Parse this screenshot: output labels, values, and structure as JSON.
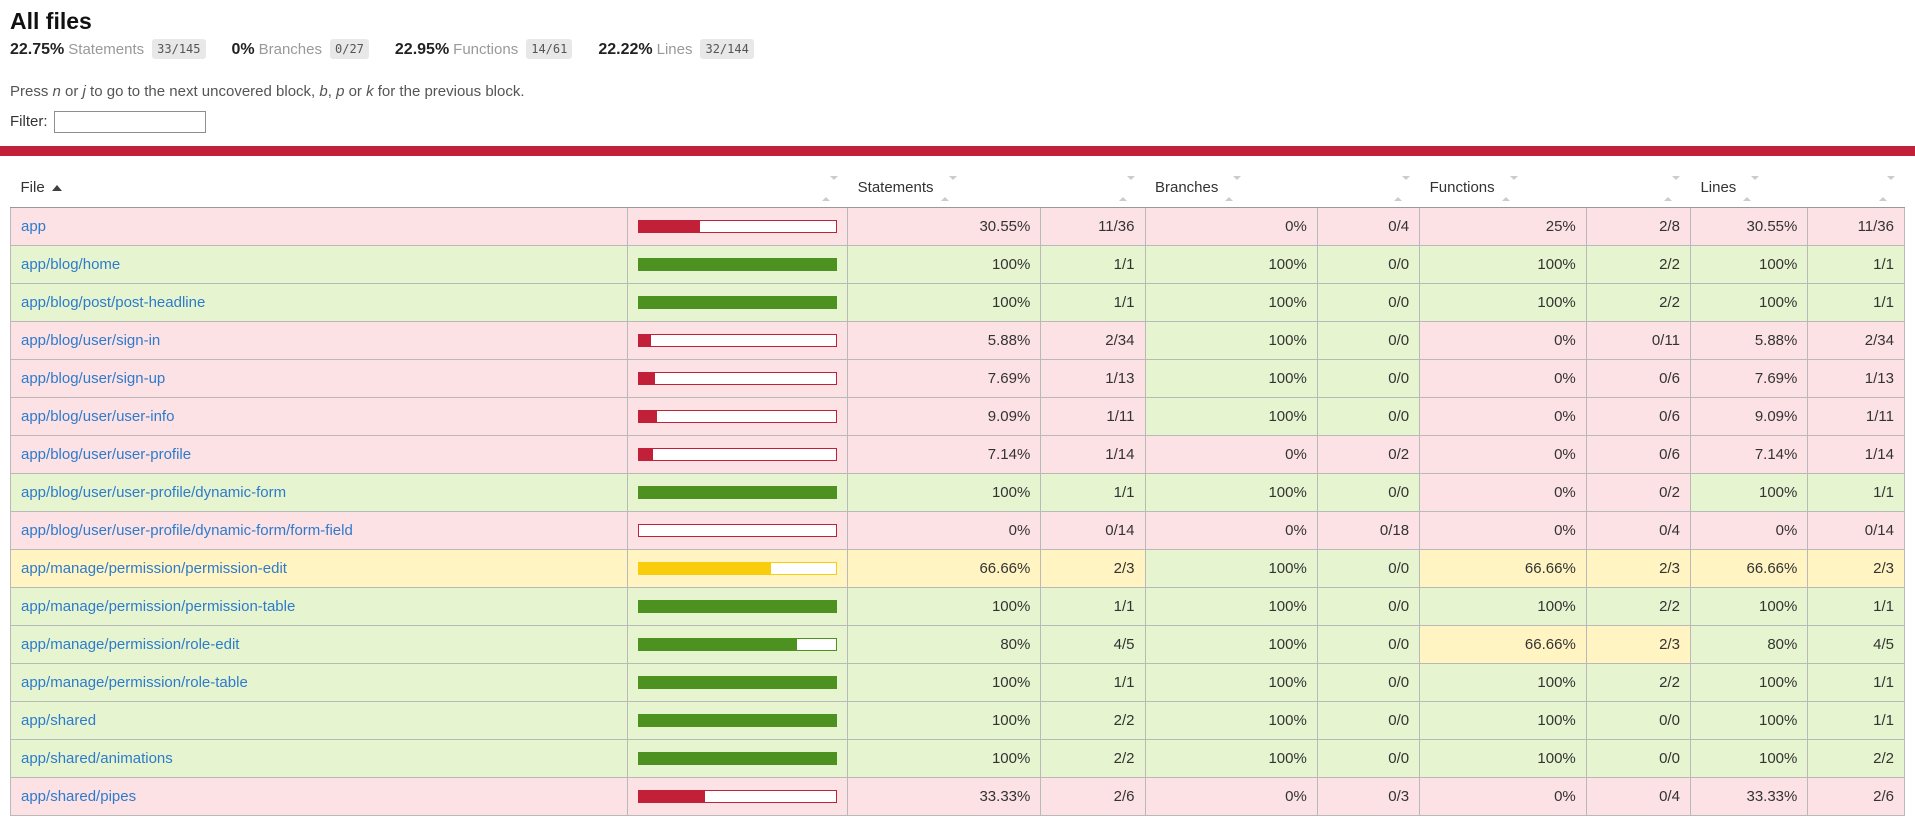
{
  "page": {
    "title": "All files",
    "summary": [
      {
        "pct": "22.75%",
        "label": "Statements",
        "fraction": "33/145"
      },
      {
        "pct": "0%",
        "label": "Branches",
        "fraction": "0/27"
      },
      {
        "pct": "22.95%",
        "label": "Functions",
        "fraction": "14/61"
      },
      {
        "pct": "22.22%",
        "label": "Lines",
        "fraction": "32/144"
      }
    ],
    "hint_segments": [
      {
        "text": "Press "
      },
      {
        "text": "n",
        "italic": true
      },
      {
        "text": " or "
      },
      {
        "text": "j",
        "italic": true
      },
      {
        "text": " to go to the next uncovered block, "
      },
      {
        "text": "b",
        "italic": true
      },
      {
        "text": ", "
      },
      {
        "text": "p",
        "italic": true
      },
      {
        "text": " or "
      },
      {
        "text": "k",
        "italic": true
      },
      {
        "text": " for the previous block."
      }
    ],
    "filter_label": "Filter:",
    "filter_value": ""
  },
  "colors": {
    "low_fill": "#C21F39",
    "medium_fill": "#F9CD0C",
    "high_fill": "#4D9221",
    "low_bg": "#FCE1E5",
    "medium_bg": "#FFF4C2",
    "high_bg": "#E6F5D0",
    "status_low": "#C21F39",
    "link": "#2E7BCC"
  },
  "table": {
    "headers": {
      "file": "File",
      "statements": "Statements",
      "branches": "Branches",
      "functions": "Functions",
      "lines": "Lines"
    },
    "rows": [
      {
        "file": "app",
        "level": "low",
        "bar_pct": 30.55,
        "statements": {
          "pct": "30.55%",
          "fraction": "11/36",
          "level": "low"
        },
        "branches": {
          "pct": "0%",
          "fraction": "0/4",
          "level": "low"
        },
        "functions": {
          "pct": "25%",
          "fraction": "2/8",
          "level": "low"
        },
        "lines": {
          "pct": "30.55%",
          "fraction": "11/36",
          "level": "low"
        }
      },
      {
        "file": "app/blog/home",
        "level": "high",
        "bar_pct": 100,
        "statements": {
          "pct": "100%",
          "fraction": "1/1",
          "level": "high"
        },
        "branches": {
          "pct": "100%",
          "fraction": "0/0",
          "level": "high"
        },
        "functions": {
          "pct": "100%",
          "fraction": "2/2",
          "level": "high"
        },
        "lines": {
          "pct": "100%",
          "fraction": "1/1",
          "level": "high"
        }
      },
      {
        "file": "app/blog/post/post-headline",
        "level": "high",
        "bar_pct": 100,
        "statements": {
          "pct": "100%",
          "fraction": "1/1",
          "level": "high"
        },
        "branches": {
          "pct": "100%",
          "fraction": "0/0",
          "level": "high"
        },
        "functions": {
          "pct": "100%",
          "fraction": "2/2",
          "level": "high"
        },
        "lines": {
          "pct": "100%",
          "fraction": "1/1",
          "level": "high"
        }
      },
      {
        "file": "app/blog/user/sign-in",
        "level": "low",
        "bar_pct": 5.88,
        "statements": {
          "pct": "5.88%",
          "fraction": "2/34",
          "level": "low"
        },
        "branches": {
          "pct": "100%",
          "fraction": "0/0",
          "level": "high"
        },
        "functions": {
          "pct": "0%",
          "fraction": "0/11",
          "level": "low"
        },
        "lines": {
          "pct": "5.88%",
          "fraction": "2/34",
          "level": "low"
        }
      },
      {
        "file": "app/blog/user/sign-up",
        "level": "low",
        "bar_pct": 7.69,
        "statements": {
          "pct": "7.69%",
          "fraction": "1/13",
          "level": "low"
        },
        "branches": {
          "pct": "100%",
          "fraction": "0/0",
          "level": "high"
        },
        "functions": {
          "pct": "0%",
          "fraction": "0/6",
          "level": "low"
        },
        "lines": {
          "pct": "7.69%",
          "fraction": "1/13",
          "level": "low"
        }
      },
      {
        "file": "app/blog/user/user-info",
        "level": "low",
        "bar_pct": 9.09,
        "statements": {
          "pct": "9.09%",
          "fraction": "1/11",
          "level": "low"
        },
        "branches": {
          "pct": "100%",
          "fraction": "0/0",
          "level": "high"
        },
        "functions": {
          "pct": "0%",
          "fraction": "0/6",
          "level": "low"
        },
        "lines": {
          "pct": "9.09%",
          "fraction": "1/11",
          "level": "low"
        }
      },
      {
        "file": "app/blog/user/user-profile",
        "level": "low",
        "bar_pct": 7.14,
        "statements": {
          "pct": "7.14%",
          "fraction": "1/14",
          "level": "low"
        },
        "branches": {
          "pct": "0%",
          "fraction": "0/2",
          "level": "low"
        },
        "functions": {
          "pct": "0%",
          "fraction": "0/6",
          "level": "low"
        },
        "lines": {
          "pct": "7.14%",
          "fraction": "1/14",
          "level": "low"
        }
      },
      {
        "file": "app/blog/user/user-profile/dynamic-form",
        "level": "high",
        "bar_pct": 100,
        "statements": {
          "pct": "100%",
          "fraction": "1/1",
          "level": "high"
        },
        "branches": {
          "pct": "100%",
          "fraction": "0/0",
          "level": "high"
        },
        "functions": {
          "pct": "0%",
          "fraction": "0/2",
          "level": "low"
        },
        "lines": {
          "pct": "100%",
          "fraction": "1/1",
          "level": "high"
        }
      },
      {
        "file": "app/blog/user/user-profile/dynamic-form/form-field",
        "level": "low",
        "bar_pct": 0,
        "statements": {
          "pct": "0%",
          "fraction": "0/14",
          "level": "low"
        },
        "branches": {
          "pct": "0%",
          "fraction": "0/18",
          "level": "low"
        },
        "functions": {
          "pct": "0%",
          "fraction": "0/4",
          "level": "low"
        },
        "lines": {
          "pct": "0%",
          "fraction": "0/14",
          "level": "low"
        }
      },
      {
        "file": "app/manage/permission/permission-edit",
        "level": "medium",
        "bar_pct": 66.66,
        "statements": {
          "pct": "66.66%",
          "fraction": "2/3",
          "level": "medium"
        },
        "branches": {
          "pct": "100%",
          "fraction": "0/0",
          "level": "high"
        },
        "functions": {
          "pct": "66.66%",
          "fraction": "2/3",
          "level": "medium"
        },
        "lines": {
          "pct": "66.66%",
          "fraction": "2/3",
          "level": "medium"
        }
      },
      {
        "file": "app/manage/permission/permission-table",
        "level": "high",
        "bar_pct": 100,
        "statements": {
          "pct": "100%",
          "fraction": "1/1",
          "level": "high"
        },
        "branches": {
          "pct": "100%",
          "fraction": "0/0",
          "level": "high"
        },
        "functions": {
          "pct": "100%",
          "fraction": "2/2",
          "level": "high"
        },
        "lines": {
          "pct": "100%",
          "fraction": "1/1",
          "level": "high"
        }
      },
      {
        "file": "app/manage/permission/role-edit",
        "level": "high",
        "bar_pct": 80,
        "statements": {
          "pct": "80%",
          "fraction": "4/5",
          "level": "high"
        },
        "branches": {
          "pct": "100%",
          "fraction": "0/0",
          "level": "high"
        },
        "functions": {
          "pct": "66.66%",
          "fraction": "2/3",
          "level": "medium"
        },
        "lines": {
          "pct": "80%",
          "fraction": "4/5",
          "level": "high"
        }
      },
      {
        "file": "app/manage/permission/role-table",
        "level": "high",
        "bar_pct": 100,
        "statements": {
          "pct": "100%",
          "fraction": "1/1",
          "level": "high"
        },
        "branches": {
          "pct": "100%",
          "fraction": "0/0",
          "level": "high"
        },
        "functions": {
          "pct": "100%",
          "fraction": "2/2",
          "level": "high"
        },
        "lines": {
          "pct": "100%",
          "fraction": "1/1",
          "level": "high"
        }
      },
      {
        "file": "app/shared",
        "level": "high",
        "bar_pct": 100,
        "statements": {
          "pct": "100%",
          "fraction": "2/2",
          "level": "high"
        },
        "branches": {
          "pct": "100%",
          "fraction": "0/0",
          "level": "high"
        },
        "functions": {
          "pct": "100%",
          "fraction": "0/0",
          "level": "high"
        },
        "lines": {
          "pct": "100%",
          "fraction": "1/1",
          "level": "high"
        }
      },
      {
        "file": "app/shared/animations",
        "level": "high",
        "bar_pct": 100,
        "statements": {
          "pct": "100%",
          "fraction": "2/2",
          "level": "high"
        },
        "branches": {
          "pct": "100%",
          "fraction": "0/0",
          "level": "high"
        },
        "functions": {
          "pct": "100%",
          "fraction": "0/0",
          "level": "high"
        },
        "lines": {
          "pct": "100%",
          "fraction": "2/2",
          "level": "high"
        }
      },
      {
        "file": "app/shared/pipes",
        "level": "low",
        "bar_pct": 33.33,
        "statements": {
          "pct": "33.33%",
          "fraction": "2/6",
          "level": "low"
        },
        "branches": {
          "pct": "0%",
          "fraction": "0/3",
          "level": "low"
        },
        "functions": {
          "pct": "0%",
          "fraction": "0/4",
          "level": "low"
        },
        "lines": {
          "pct": "33.33%",
          "fraction": "2/6",
          "level": "low"
        }
      }
    ]
  }
}
